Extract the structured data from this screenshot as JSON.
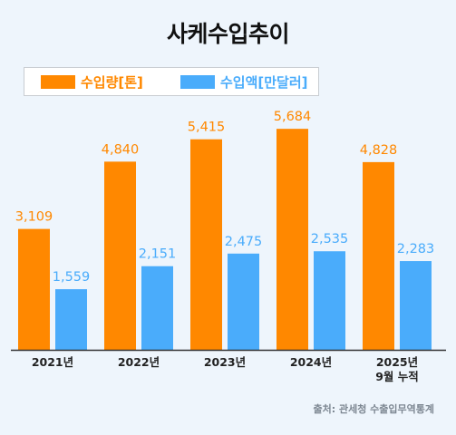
{
  "colors": {
    "volume": "#ff8800",
    "amount": "#4aacfb",
    "axis": "#333333",
    "background": "#eef5fc"
  },
  "chart_data": {
    "type": "bar",
    "title": "사케수입추이",
    "categories": [
      "2021년",
      "2022년",
      "2023년",
      "2024년",
      "2025년 9월 누적"
    ],
    "series": [
      {
        "name": "수입량[톤]",
        "values": [
          3109,
          4840,
          5415,
          5684,
          4828
        ],
        "value_labels": [
          "3,109",
          "4,840",
          "5,415",
          "5,684",
          "4,828"
        ]
      },
      {
        "name": "수입액[만달러]",
        "values": [
          1559,
          2151,
          2475,
          2535,
          2283
        ],
        "value_labels": [
          "1,559",
          "2,151",
          "2,475",
          "2,535",
          "2,283"
        ]
      }
    ],
    "legend": "top-left",
    "grid": false
  },
  "source": "출처: 관세청 수출입무역통계"
}
